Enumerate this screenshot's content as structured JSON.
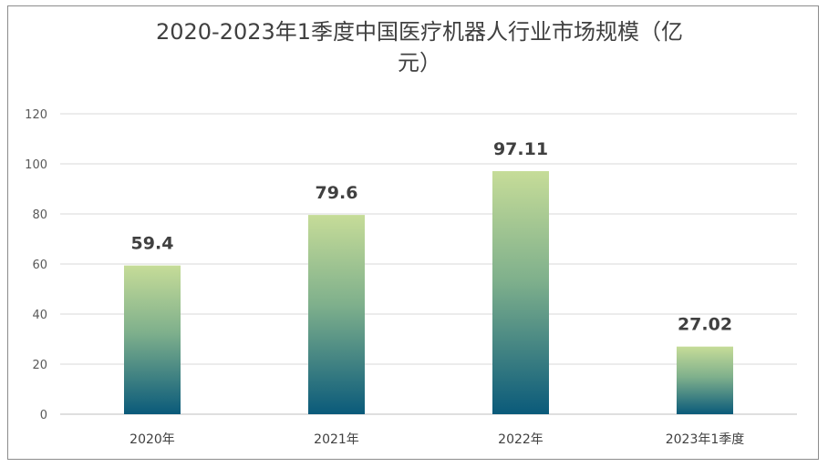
{
  "chart_data": {
    "type": "bar",
    "title_line1": "2020-2023年1季度中国医疗机器人行业市场规模（亿",
    "title_line2": "元）",
    "categories": [
      "2020年",
      "2021年",
      "2022年",
      "2023年1季度"
    ],
    "values": [
      59.4,
      79.6,
      97.11,
      27.02
    ],
    "value_labels": [
      "59.4",
      "79.6",
      "97.11",
      "27.02"
    ],
    "ylim": [
      0,
      120
    ],
    "yticks": [
      0,
      20,
      40,
      60,
      80,
      100,
      120
    ],
    "grid": true,
    "legend": "none",
    "xlabel": "",
    "ylabel": ""
  },
  "colors": {
    "bar_top": "#c6dc98",
    "bar_mid": "#7fb08c",
    "bar_bottom": "#0a5a7a",
    "gridline": "#d9d9d9",
    "axis": "#bfbfbf"
  }
}
